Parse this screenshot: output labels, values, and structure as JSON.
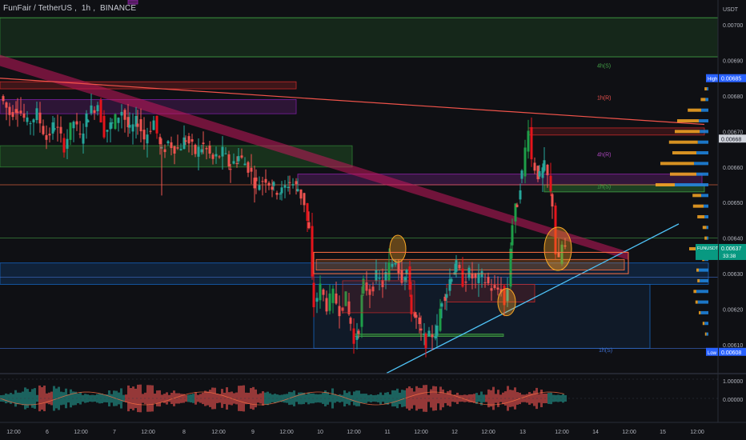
{
  "header": {
    "symbol": "FunFair / TetherUS",
    "interval": "1h",
    "exchange": "BINANCE"
  },
  "price_axis": {
    "currency": "USDT",
    "ticks": [
      "0.00700",
      "0.00690",
      "0.00680",
      "0.00670",
      "0.00660",
      "0.00650",
      "0.00640",
      "0.00630",
      "0.00620",
      "0.00610"
    ],
    "badges": {
      "high": {
        "label": "High",
        "value": "0.00685"
      },
      "mid": {
        "value": "0.00668"
      },
      "last": {
        "symbol": "FUNUSDT",
        "value": "0.00637",
        "countdown": "33:38"
      },
      "low": {
        "label": "Low",
        "value": "0.00608"
      }
    }
  },
  "time_axis": {
    "ticks": [
      "12:00",
      "6",
      "12:00",
      "7",
      "12:00",
      "8",
      "12:00",
      "9",
      "12:00",
      "10",
      "12:00",
      "11",
      "12:00",
      "12",
      "12:00",
      "13",
      "12:00",
      "14",
      "12:00",
      "15",
      "12:00"
    ]
  },
  "indicator_axis": {
    "ticks": [
      "1.00000",
      "0.00000"
    ]
  },
  "zone_labels": [
    "4h(S)",
    "1h(R)",
    "4h(R)",
    "1h(S)",
    "1h(S)"
  ],
  "colors": {
    "background": "#0f1014",
    "bull": "#26a69a",
    "bear": "#ef5350",
    "bull_strong": "#1e9e48",
    "bear_strong": "#e5141b",
    "trend_band": "#c2185b",
    "resistance_line": "#f0534a",
    "support_line": "#4fc3f7",
    "high_badge": "#2962ff",
    "last_badge": "#089981",
    "volume_up": "#f9a825",
    "volume_down": "#1e88e5"
  },
  "chart_data": {
    "type": "candlestick",
    "symbol": "FUNUSDT",
    "interval": "1h",
    "ylim": [
      0.00603,
      0.00707
    ],
    "xlabel": "",
    "ylabel": "",
    "grid": false,
    "summary": {
      "high": 0.00685,
      "low": 0.00608,
      "last": 0.00637,
      "marked": 0.00668
    },
    "price_path": [
      [
        0,
        0.0068
      ],
      [
        12,
        0.00675
      ],
      [
        22,
        0.00677
      ],
      [
        34,
        0.00672
      ],
      [
        46,
        0.00675
      ],
      [
        58,
        0.00668
      ],
      [
        68,
        0.00672
      ],
      [
        80,
        0.00666
      ],
      [
        92,
        0.00673
      ],
      [
        100,
        0.00668
      ],
      [
        110,
        0.00675
      ],
      [
        122,
        0.00678
      ],
      [
        130,
        0.0067
      ],
      [
        140,
        0.00672
      ],
      [
        152,
        0.00676
      ],
      [
        162,
        0.0067
      ],
      [
        172,
        0.00673
      ],
      [
        180,
        0.00668
      ],
      [
        192,
        0.00673
      ],
      [
        202,
        0.00664
      ],
      [
        210,
        0.00667
      ],
      [
        222,
        0.00665
      ],
      [
        232,
        0.00668
      ],
      [
        244,
        0.00664
      ],
      [
        254,
        0.00666
      ],
      [
        266,
        0.00662
      ],
      [
        278,
        0.00664
      ],
      [
        288,
        0.0066
      ],
      [
        298,
        0.00663
      ],
      [
        310,
        0.0066
      ],
      [
        320,
        0.00655
      ],
      [
        332,
        0.00657
      ],
      [
        342,
        0.00654
      ],
      [
        352,
        0.00653
      ],
      [
        362,
        0.00656
      ],
      [
        372,
        0.00654
      ],
      [
        380,
        0.0065
      ],
      [
        386,
        0.00642
      ],
      [
        392,
        0.00621
      ],
      [
        400,
        0.00626
      ],
      [
        408,
        0.00621
      ],
      [
        416,
        0.00624
      ],
      [
        424,
        0.0062
      ],
      [
        432,
        0.00623
      ],
      [
        438,
        0.00616
      ],
      [
        442,
        0.0061
      ],
      [
        448,
        0.00615
      ],
      [
        454,
        0.00627
      ],
      [
        462,
        0.00625
      ],
      [
        470,
        0.00629
      ],
      [
        478,
        0.00627
      ],
      [
        486,
        0.00632
      ],
      [
        494,
        0.00634
      ],
      [
        502,
        0.00629
      ],
      [
        508,
        0.00631
      ],
      [
        514,
        0.0062
      ],
      [
        520,
        0.00617
      ],
      [
        526,
        0.00613
      ],
      [
        532,
        0.00611
      ],
      [
        540,
        0.00613
      ],
      [
        546,
        0.00614
      ],
      [
        552,
        0.00623
      ],
      [
        558,
        0.00625
      ],
      [
        564,
        0.0063
      ],
      [
        570,
        0.00632
      ],
      [
        578,
        0.00628
      ],
      [
        586,
        0.0063
      ],
      [
        594,
        0.00628
      ],
      [
        602,
        0.00629
      ],
      [
        610,
        0.00627
      ],
      [
        618,
        0.00625
      ],
      [
        626,
        0.00626
      ],
      [
        630,
        0.00621
      ],
      [
        634,
        0.00626
      ],
      [
        640,
        0.00644
      ],
      [
        646,
        0.0065
      ],
      [
        652,
        0.00658
      ],
      [
        656,
        0.00665
      ],
      [
        660,
        0.00672
      ],
      [
        664,
        0.00662
      ],
      [
        668,
        0.0066
      ],
      [
        674,
        0.00657
      ],
      [
        680,
        0.0066
      ],
      [
        684,
        0.00657
      ],
      [
        690,
        0.0065
      ],
      [
        694,
        0.00636
      ],
      [
        698,
        0.00633
      ],
      [
        702,
        0.00638
      ],
      [
        706,
        0.00637
      ]
    ],
    "horizontal_levels": [
      {
        "price": 0.00702,
        "kind": "support_zone_top"
      },
      {
        "price": 0.00691,
        "kind": "support_zone_bottom"
      },
      {
        "price": 0.00655,
        "kind": "level"
      },
      {
        "price": 0.0064,
        "kind": "level"
      },
      {
        "price": 0.00629,
        "kind": "level"
      },
      {
        "price": 0.00609,
        "kind": "level"
      }
    ],
    "trendlines": [
      {
        "kind": "resistance",
        "from": [
          0,
          0.00685
        ],
        "to": [
          880,
          0.00672
        ]
      },
      {
        "kind": "support",
        "from": [
          483,
          0.00602
        ],
        "to": [
          848,
          0.00644
        ]
      },
      {
        "kind": "downtrend_band",
        "from": [
          0,
          0.0069
        ],
        "to": [
          785,
          0.00635
        ]
      }
    ],
    "volume_profile": {
      "prices": [
        0.00682,
        0.00679,
        0.00676,
        0.00673,
        0.0067,
        0.00667,
        0.00664,
        0.00661,
        0.00658,
        0.00655,
        0.00652,
        0.00649,
        0.00646,
        0.00643,
        0.0064,
        0.00637,
        0.00634,
        0.00631,
        0.00628,
        0.00625,
        0.00622,
        0.00619,
        0.00616,
        0.00613
      ],
      "up": [
        0.05,
        0.1,
        0.28,
        0.45,
        0.52,
        0.6,
        0.5,
        0.7,
        0.55,
        0.4,
        0.18,
        0.22,
        0.15,
        0.08,
        0.05,
        0.35,
        0.05,
        0.05,
        0.05,
        0.06,
        0.05,
        0.04,
        0.04,
        0.03
      ],
      "down": [
        0.03,
        0.06,
        0.15,
        0.2,
        0.18,
        0.22,
        0.25,
        0.3,
        0.25,
        0.7,
        0.15,
        0.1,
        0.08,
        0.04,
        0.03,
        0.05,
        0.08,
        0.2,
        0.18,
        0.25,
        0.22,
        0.16,
        0.08,
        0.04
      ]
    }
  }
}
